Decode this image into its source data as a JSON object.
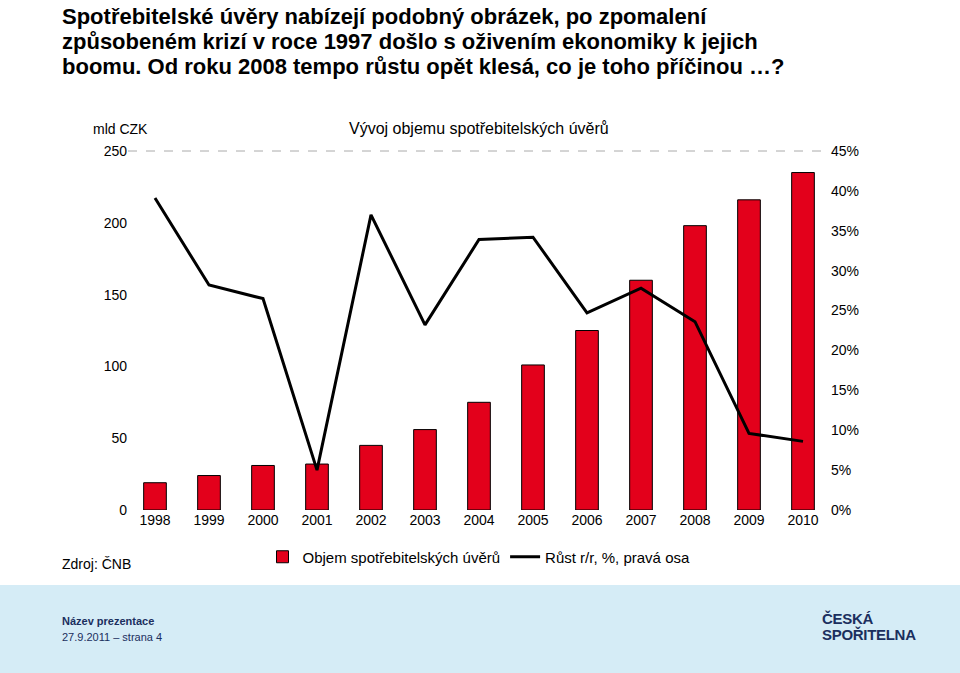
{
  "slide": {
    "heading_lines": [
      "Spotřebitelské úvěry nabízejí podobný obrázek, po zpomalení",
      "způsobeném krizí v roce 1997 došlo s oživením ekonomiky k jejich",
      "boomu. Od roku 2008 tempo růstu opět klesá, co je toho příčinou …?"
    ],
    "source": "Zdroj: ČNB",
    "footer": {
      "presentation": "Název prezentace",
      "date_page": "27.9.2011 – strana 4",
      "logo_lines": [
        "ČESKÁ",
        "SPOŘITELNA"
      ]
    }
  },
  "chart_data": {
    "type": "bar",
    "title": "Vývoj objemu spotřebitelských úvěrů",
    "y_label": "mld CZK",
    "categories": [
      "1998",
      "1999",
      "2000",
      "2001",
      "2002",
      "2003",
      "2004",
      "2005",
      "2006",
      "2007",
      "2008",
      "2009",
      "2010"
    ],
    "series": [
      {
        "name": "Objem spotřebitelských úvěrů",
        "type": "bar",
        "color": "#e3001b",
        "values": [
          19,
          24,
          31,
          32,
          45,
          56,
          75,
          101,
          125,
          160,
          198,
          216,
          235
        ]
      },
      {
        "name": "Růst r/r, %, pravá osa",
        "type": "line",
        "color": "#000000",
        "axis": "y2",
        "values": [
          39.1,
          28.2,
          26.5,
          5.0,
          37.0,
          23.2,
          33.9,
          34.2,
          24.7,
          27.8,
          23.6,
          9.6,
          8.6
        ]
      }
    ],
    "ylim": [
      0,
      250
    ],
    "yticks": [
      0,
      50,
      100,
      150,
      200,
      250
    ],
    "y2lim": [
      0,
      45
    ],
    "y2ticks": [
      {
        "value": 0,
        "label": "0%"
      },
      {
        "value": 5,
        "label": "5%"
      },
      {
        "value": 10,
        "label": "10%"
      },
      {
        "value": 15,
        "label": "15%"
      },
      {
        "value": 20,
        "label": "20%"
      },
      {
        "value": 25,
        "label": "25%"
      },
      {
        "value": 30,
        "label": "30%"
      },
      {
        "value": 35,
        "label": "35%"
      },
      {
        "value": 40,
        "label": "40%"
      },
      {
        "value": 45,
        "label": "45%"
      }
    ],
    "grid": false,
    "legend": "bottom"
  }
}
